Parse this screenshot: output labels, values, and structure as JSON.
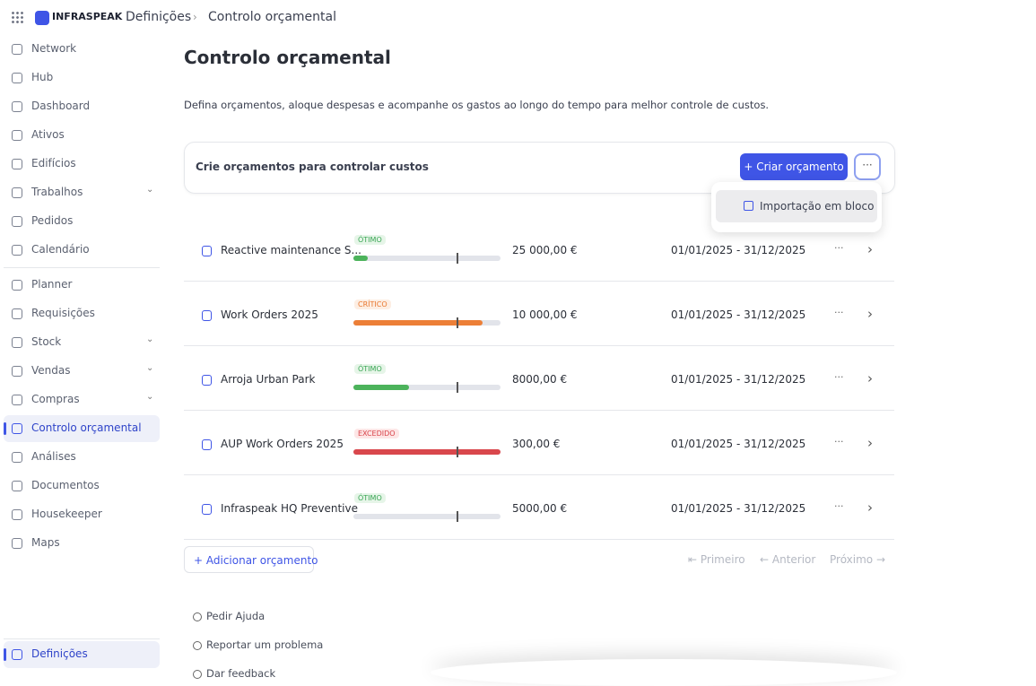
{
  "topbar": {
    "brand": "INFRASPEAK",
    "breadcrumb": [
      "Definições",
      "Controlo orçamental"
    ]
  },
  "sidebar": {
    "groups": [
      [
        {
          "label": "Network",
          "expandable": false,
          "active": false
        },
        {
          "label": "Hub",
          "expandable": false,
          "active": false
        },
        {
          "label": "Dashboard",
          "expandable": false,
          "active": false
        },
        {
          "label": "Ativos",
          "expandable": false,
          "active": false
        },
        {
          "label": "Edifícios",
          "expandable": false,
          "active": false
        },
        {
          "label": "Trabalhos",
          "expandable": true,
          "active": false
        },
        {
          "label": "Pedidos",
          "expandable": false,
          "active": false
        },
        {
          "label": "Calendário",
          "expandable": false,
          "active": false
        }
      ],
      [
        {
          "label": "Planner",
          "expandable": false,
          "active": false
        },
        {
          "label": "Requisições",
          "expandable": false,
          "active": false
        },
        {
          "label": "Stock",
          "expandable": true,
          "active": false
        },
        {
          "label": "Vendas",
          "expandable": true,
          "active": false
        },
        {
          "label": "Compras",
          "expandable": true,
          "active": false
        },
        {
          "label": "Controlo orçamental",
          "expandable": false,
          "active": true
        },
        {
          "label": "Análises",
          "expandable": false,
          "active": false
        },
        {
          "label": "Documentos",
          "expandable": false,
          "active": false
        },
        {
          "label": "Housekeeper",
          "expandable": false,
          "active": false
        },
        {
          "label": "Maps",
          "expandable": false,
          "active": false
        }
      ]
    ],
    "settings": {
      "label": "Definições",
      "active": true
    }
  },
  "page": {
    "title": "Controlo orçamental",
    "description": "Defina orçamentos, aloque despesas e acompanhe os gastos ao longo do tempo para melhor controle de custos.",
    "banner": {
      "text": "Crie orçamentos para controlar custos",
      "create_button": "Criar orçamento",
      "menu": [
        "Importação em bloco"
      ]
    },
    "budgets": [
      {
        "name": "Reactive maintenance S...",
        "status": "ÓTIMO",
        "status_color": "#3aa655",
        "status_bg": "#e6f5e8",
        "bar_color": "#4cb35b",
        "progress": 10,
        "amount": "25 000,00 €",
        "period": "01/01/2025 - 31/12/2025"
      },
      {
        "name": "Work Orders 2025",
        "status": "CRÍTICO",
        "status_color": "#e8772e",
        "status_bg": "#fdeee3",
        "bar_color": "#ec7f37",
        "progress": 88,
        "amount": "10 000,00 €",
        "period": "01/01/2025 - 31/12/2025"
      },
      {
        "name": "Arroja Urban Park",
        "status": "ÓTIMO",
        "status_color": "#3aa655",
        "status_bg": "#e6f5e8",
        "bar_color": "#4cb35b",
        "progress": 38,
        "amount": "8000,00 €",
        "period": "01/01/2025 - 31/12/2025"
      },
      {
        "name": "AUP Work Orders 2025",
        "status": "EXCEDIDO",
        "status_color": "#d9434a",
        "status_bg": "#fde6e6",
        "bar_color": "#d9474c",
        "progress": 100,
        "amount": "300,00 €",
        "period": "01/01/2025 - 31/12/2025"
      },
      {
        "name": "Infraspeak HQ Preventive",
        "status": "ÓTIMO",
        "status_color": "#3aa655",
        "status_bg": "#e6f5e8",
        "bar_color": "#4cb35b",
        "progress": 0,
        "amount": "5000,00 €",
        "period": "01/01/2025 - 31/12/2025"
      }
    ],
    "add_button": "Adicionar orçamento",
    "pagination": [
      "Primeiro",
      "Anterior",
      "Próximo"
    ],
    "footer_links": [
      "Pedir Ajuda",
      "Reportar um problema",
      "Dar feedback"
    ]
  }
}
